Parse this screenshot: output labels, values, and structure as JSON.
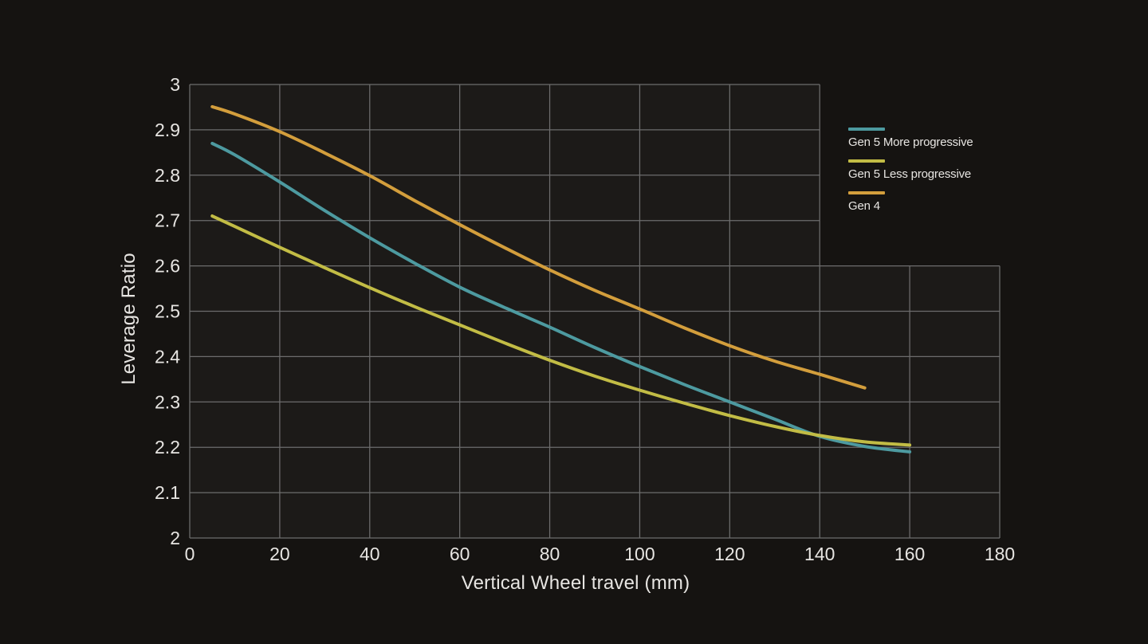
{
  "chart_data": {
    "type": "line",
    "title": "",
    "xlabel": "Vertical Wheel travel (mm)",
    "ylabel": "Leverage Ratio",
    "xlim": [
      0,
      180
    ],
    "ylim": [
      2.0,
      3.0
    ],
    "x_ticks": [
      "0",
      "20",
      "40",
      "60",
      "80",
      "100",
      "120",
      "140",
      "160",
      "180"
    ],
    "y_ticks": [
      "3",
      "2.9",
      "2.8",
      "2.7",
      "2.6",
      "2.5",
      "2.4",
      "2.3",
      "2.2",
      "2.1",
      "2"
    ],
    "grid": true,
    "legend_position": "top-right-inset",
    "grid_note": "grid cut out above 2.6 and right of 140mm where legend sits",
    "series": [
      {
        "name": "Gen 5 More progressive",
        "color": "#4d9aa0",
        "points": [
          [
            5,
            2.87
          ],
          [
            10,
            2.845
          ],
          [
            20,
            2.785
          ],
          [
            30,
            2.722
          ],
          [
            40,
            2.662
          ],
          [
            50,
            2.606
          ],
          [
            60,
            2.553
          ],
          [
            70,
            2.508
          ],
          [
            80,
            2.465
          ],
          [
            90,
            2.42
          ],
          [
            100,
            2.378
          ],
          [
            110,
            2.338
          ],
          [
            120,
            2.3
          ],
          [
            130,
            2.262
          ],
          [
            140,
            2.224
          ],
          [
            150,
            2.202
          ],
          [
            160,
            2.19
          ]
        ]
      },
      {
        "name": "Gen 5 Less progressive",
        "color": "#c2bc45",
        "points": [
          [
            5,
            2.71
          ],
          [
            10,
            2.687
          ],
          [
            20,
            2.641
          ],
          [
            30,
            2.596
          ],
          [
            40,
            2.552
          ],
          [
            50,
            2.51
          ],
          [
            60,
            2.47
          ],
          [
            70,
            2.43
          ],
          [
            80,
            2.392
          ],
          [
            90,
            2.357
          ],
          [
            100,
            2.326
          ],
          [
            110,
            2.297
          ],
          [
            120,
            2.27
          ],
          [
            130,
            2.246
          ],
          [
            140,
            2.226
          ],
          [
            150,
            2.212
          ],
          [
            160,
            2.205
          ]
        ]
      },
      {
        "name": "Gen 4",
        "color": "#d39e3c",
        "points": [
          [
            5,
            2.951
          ],
          [
            10,
            2.935
          ],
          [
            20,
            2.896
          ],
          [
            30,
            2.849
          ],
          [
            40,
            2.799
          ],
          [
            50,
            2.744
          ],
          [
            60,
            2.691
          ],
          [
            70,
            2.64
          ],
          [
            80,
            2.591
          ],
          [
            90,
            2.546
          ],
          [
            100,
            2.505
          ],
          [
            110,
            2.463
          ],
          [
            120,
            2.424
          ],
          [
            130,
            2.39
          ],
          [
            140,
            2.361
          ],
          [
            150,
            2.331
          ]
        ]
      }
    ],
    "colors": {
      "background": "#151311",
      "plot_background": "#1c1a18",
      "gridline": "#6d6d6d",
      "text": "#e7e5e2"
    }
  }
}
